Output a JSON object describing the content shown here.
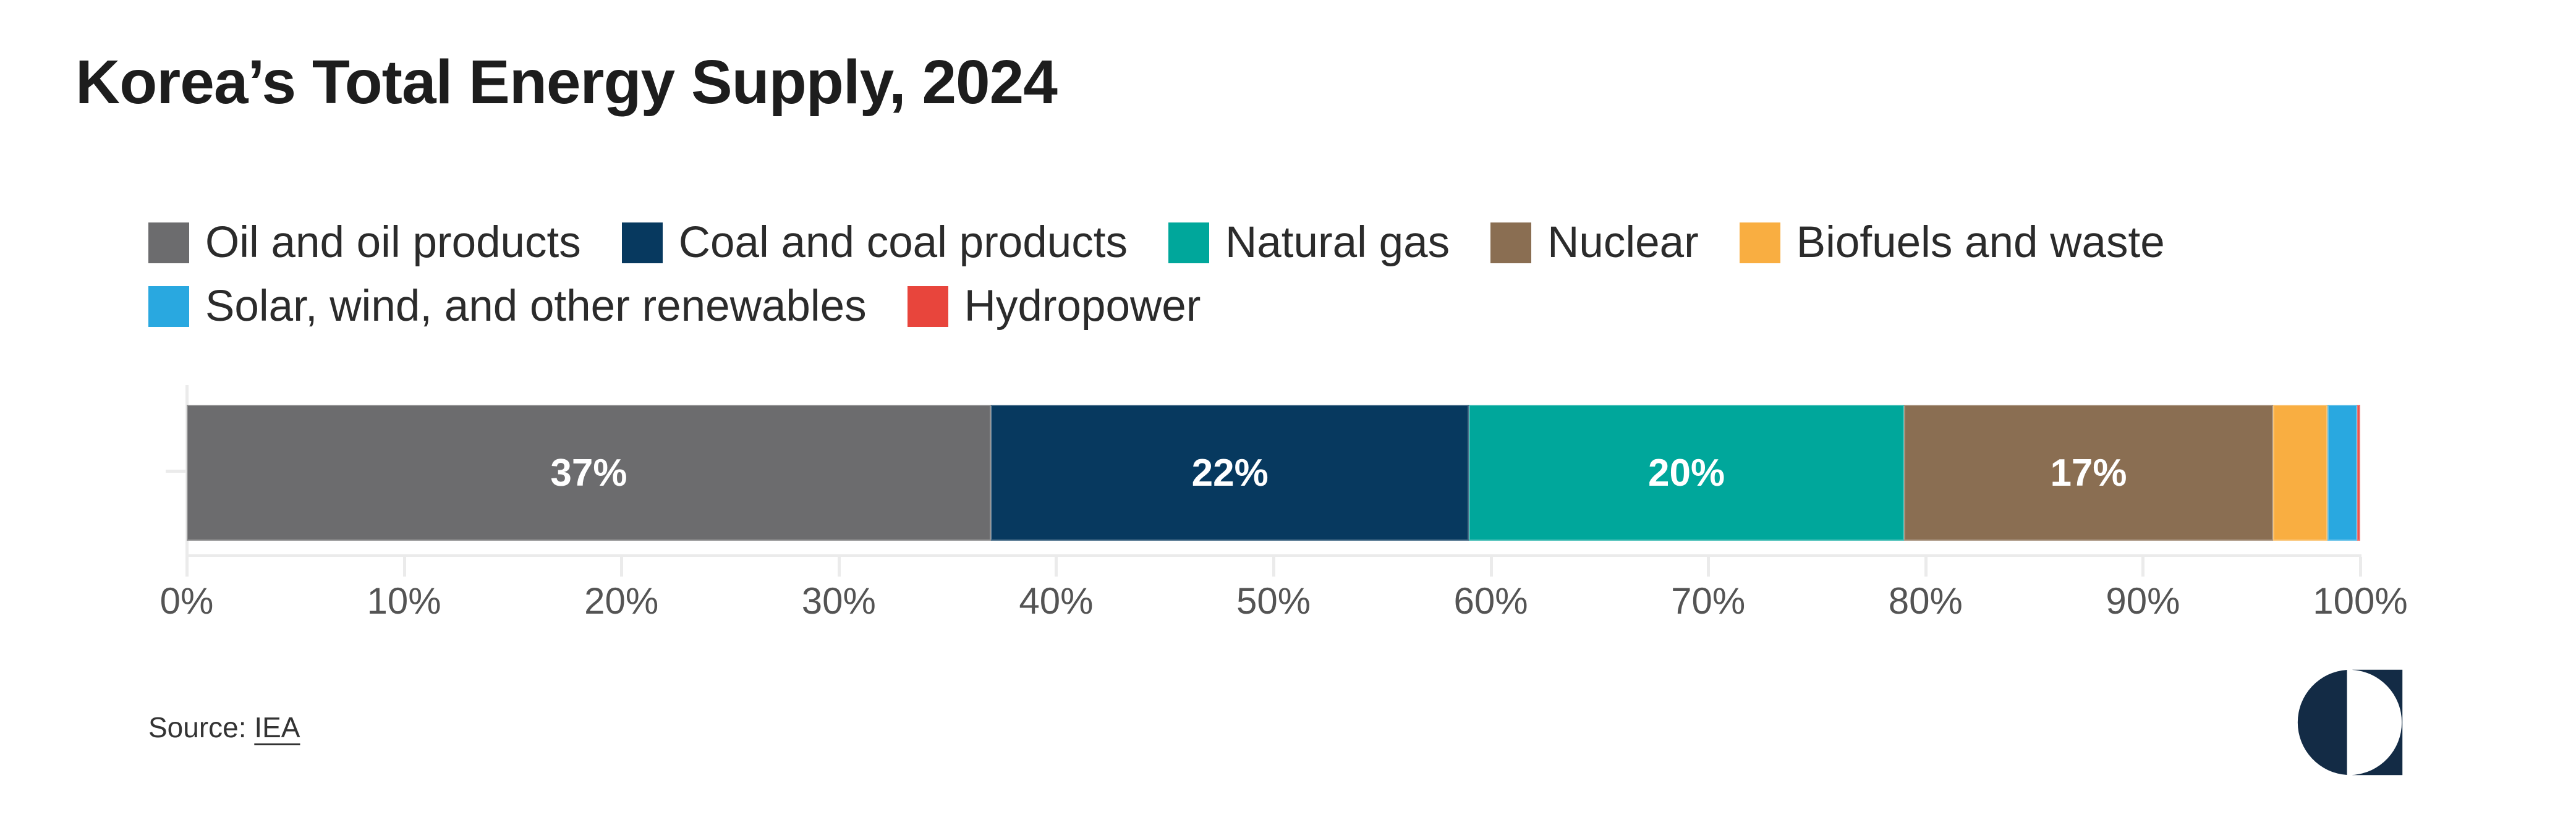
{
  "page": {
    "title": "Korea’s Total Energy Supply, 2024"
  },
  "chart_data": {
    "type": "bar",
    "subtype": "horizontal-stacked-100",
    "title": "Korea’s Total Energy Supply, 2024",
    "unit": "%",
    "xlim": [
      0,
      100
    ],
    "grid": false,
    "legend_position": "top",
    "series": [
      {
        "name": "Oil and oil products",
        "value": 37,
        "color": "#6c6c6e",
        "label_shown": true
      },
      {
        "name": "Coal and coal products",
        "value": 22,
        "color": "#07395f",
        "label_shown": true
      },
      {
        "name": "Natural gas",
        "value": 20,
        "color": "#00a79b",
        "label_shown": true
      },
      {
        "name": "Nuclear",
        "value": 17,
        "color": "#8a6e52",
        "label_shown": true
      },
      {
        "name": "Biofuels and waste",
        "value": 2.5,
        "color": "#f9ae41",
        "label_shown": false
      },
      {
        "name": "Solar, wind, and other renewables",
        "value": 1.35,
        "color": "#29a8e0",
        "label_shown": false
      },
      {
        "name": "Hydropower",
        "value": 0.15,
        "color": "#e8453c",
        "label_shown": false
      }
    ],
    "x_axis": {
      "ticks": [
        {
          "value": 0,
          "label": "0%"
        },
        {
          "value": 10,
          "label": "10%"
        },
        {
          "value": 20,
          "label": "20%"
        },
        {
          "value": 30,
          "label": "30%"
        },
        {
          "value": 40,
          "label": "40%"
        },
        {
          "value": 50,
          "label": "50%"
        },
        {
          "value": 60,
          "label": "60%"
        },
        {
          "value": 70,
          "label": "70%"
        },
        {
          "value": 80,
          "label": "80%"
        },
        {
          "value": 90,
          "label": "90%"
        },
        {
          "value": 100,
          "label": "100%"
        }
      ]
    }
  },
  "legend": {
    "rows": [
      [
        0,
        1,
        2,
        3,
        4
      ],
      [
        5,
        6
      ]
    ]
  },
  "source": {
    "prefix": "Source: ",
    "link": "IEA"
  },
  "logo": {
    "color": "#132b45"
  }
}
